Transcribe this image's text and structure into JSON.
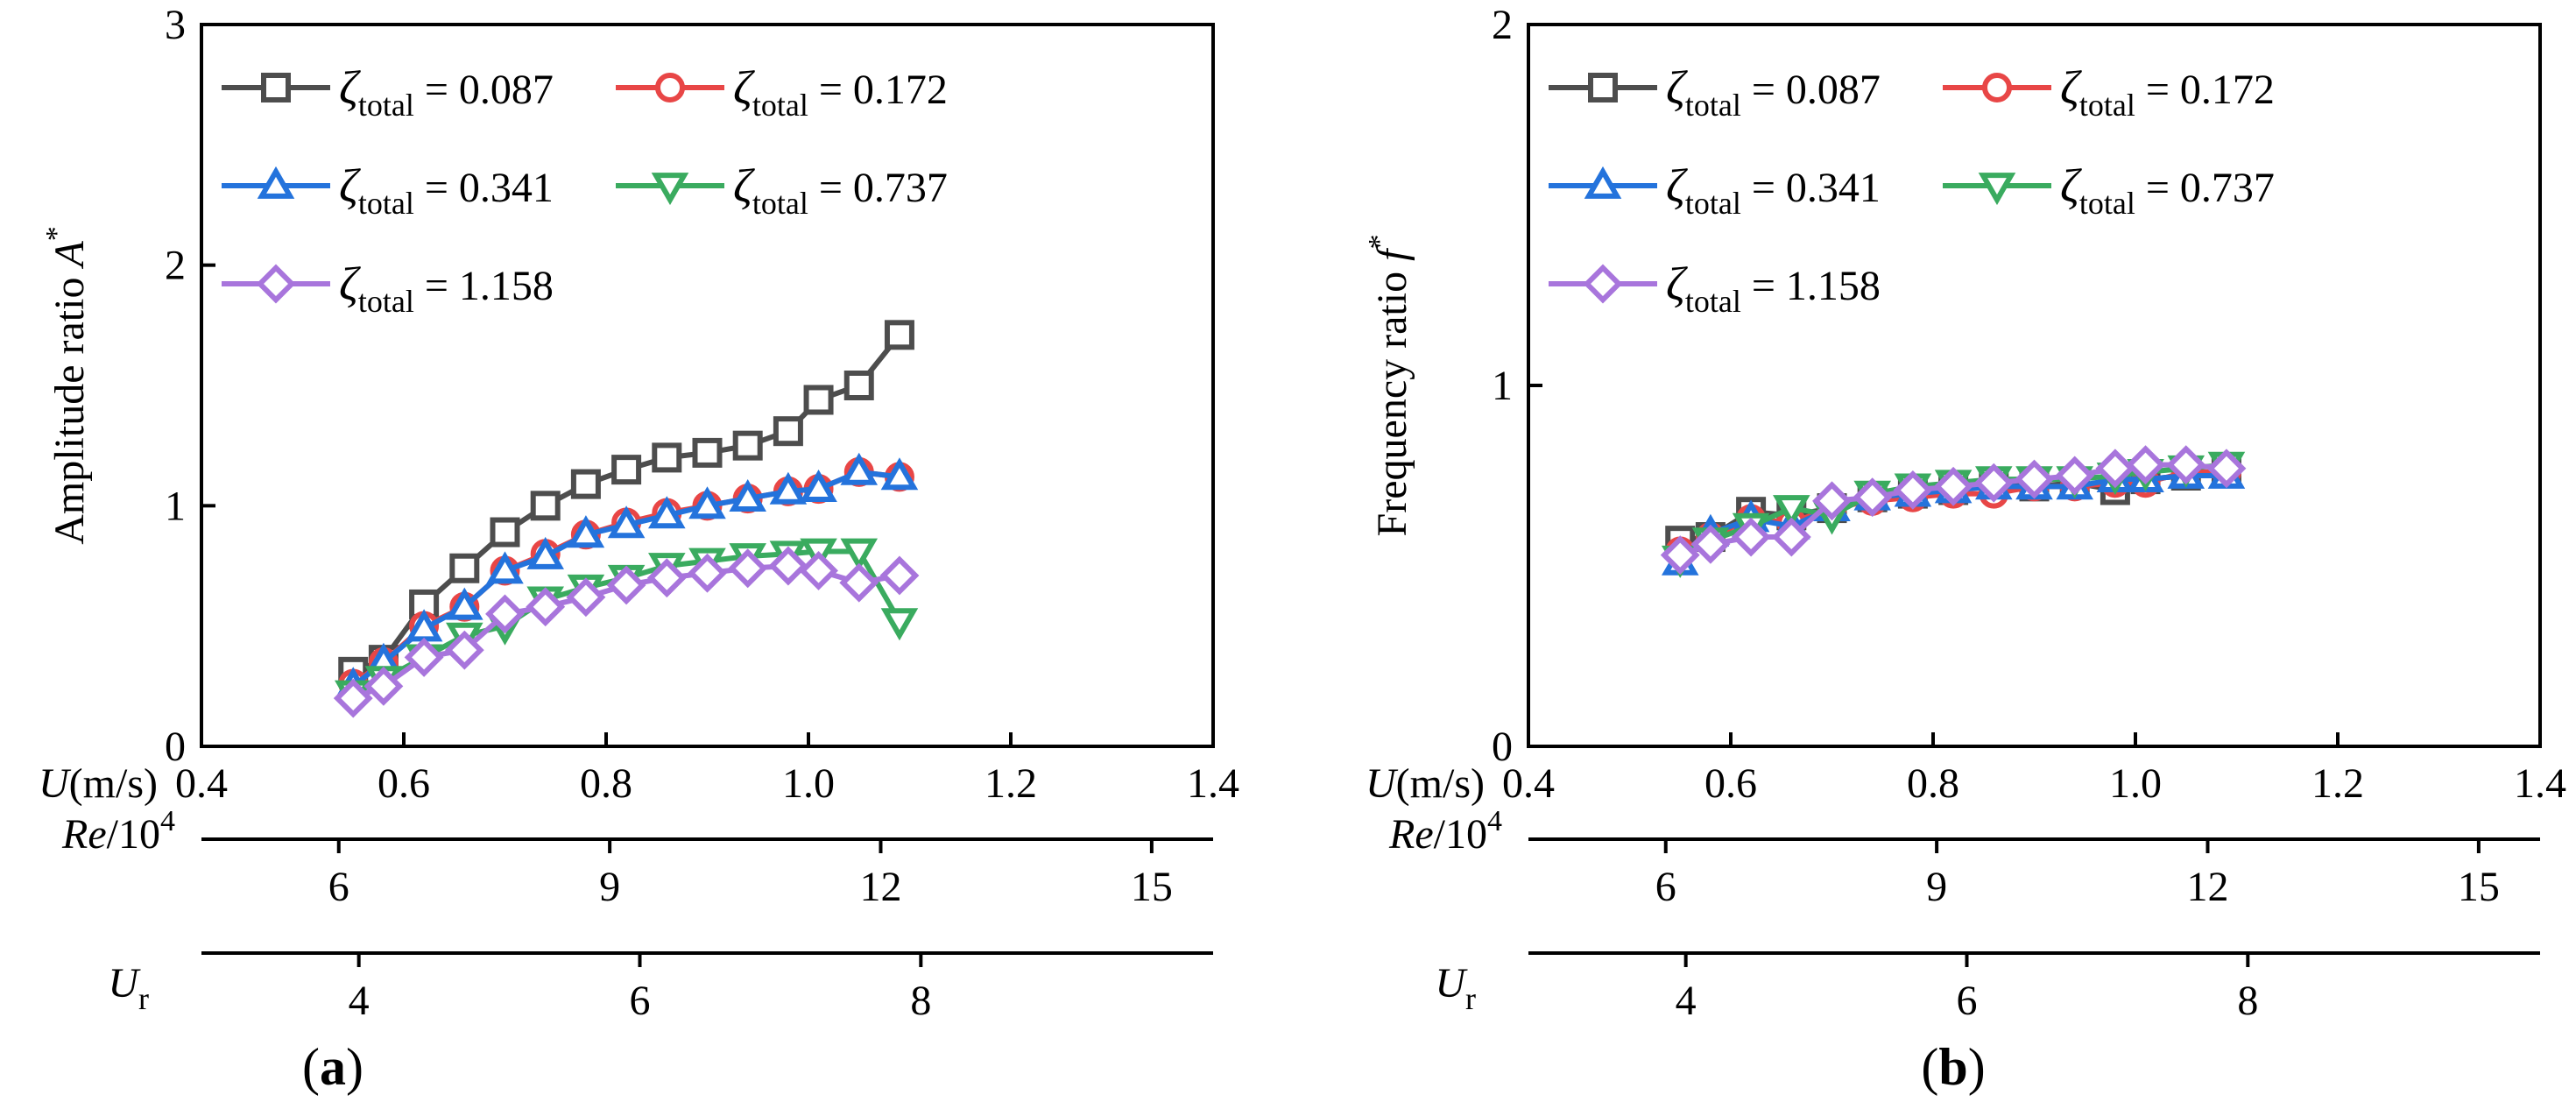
{
  "chart_data": [
    {
      "type": "line",
      "panel_label": "(a)",
      "ylabel_main": "Amplitude ratio ",
      "ylabel_var": "A",
      "ylabel_sup": "*",
      "ylim": [
        0,
        3
      ],
      "yticks": [
        "0",
        "1",
        "2",
        "3"
      ],
      "xlim": [
        0.4,
        1.4
      ],
      "x_axes": [
        {
          "label_main": "U",
          "label_rest": "(m/s)",
          "ticks": [
            0.4,
            0.6,
            0.8,
            1.0,
            1.2,
            1.4
          ],
          "tick_labels": [
            "0.4",
            "0.6",
            "0.8",
            "1.0",
            "1.2",
            "1.4"
          ]
        },
        {
          "label_main": "Re",
          "label_rest": "/10",
          "label_sup": "4",
          "ticks": [
            6,
            9,
            12,
            15
          ],
          "tick_labels": [
            "6",
            "9",
            "12",
            "15"
          ]
        },
        {
          "label_main": "U",
          "label_sub": "r",
          "ticks": [
            4,
            6,
            8
          ],
          "tick_labels": [
            "4",
            "6",
            "8"
          ]
        }
      ],
      "x": [
        0.55,
        0.58,
        0.62,
        0.66,
        0.7,
        0.74,
        0.78,
        0.82,
        0.86,
        0.9,
        0.94,
        0.98,
        1.01,
        1.05,
        1.09
      ],
      "series": [
        {
          "name": "0.087",
          "color": "#4d4d4d",
          "marker": "square",
          "values": [
            0.31,
            0.36,
            0.59,
            0.74,
            0.89,
            1.0,
            1.09,
            1.15,
            1.2,
            1.22,
            1.25,
            1.31,
            1.44,
            1.5,
            1.71
          ]
        },
        {
          "name": "0.172",
          "color": "#e84646",
          "marker": "circle",
          "values": [
            0.26,
            0.35,
            0.5,
            0.58,
            0.73,
            0.8,
            0.88,
            0.93,
            0.97,
            1.0,
            1.03,
            1.06,
            1.07,
            1.14,
            1.12
          ]
        },
        {
          "name": "0.341",
          "color": "#2473dc",
          "marker": "triangle-up",
          "values": [
            0.25,
            0.35,
            0.49,
            0.58,
            0.73,
            0.79,
            0.88,
            0.92,
            0.96,
            1.0,
            1.03,
            1.06,
            1.07,
            1.14,
            1.12
          ]
        },
        {
          "name": "0.737",
          "color": "#3aab5f",
          "marker": "triangle-down",
          "values": [
            0.22,
            0.28,
            0.37,
            0.46,
            0.5,
            0.61,
            0.66,
            0.7,
            0.75,
            0.77,
            0.79,
            0.8,
            0.81,
            0.81,
            0.52
          ]
        },
        {
          "name": "1.158",
          "color": "#a875dc",
          "marker": "diamond",
          "values": [
            0.2,
            0.25,
            0.37,
            0.4,
            0.55,
            0.58,
            0.62,
            0.67,
            0.7,
            0.72,
            0.74,
            0.75,
            0.73,
            0.68,
            0.71
          ]
        }
      ]
    },
    {
      "type": "line",
      "panel_label": "(b)",
      "ylabel_main": "Frequency ratio ",
      "ylabel_var": "f",
      "ylabel_sup": "*",
      "ylim": [
        0,
        2
      ],
      "yticks": [
        "0",
        "1",
        "2"
      ],
      "xlim": [
        0.4,
        1.4
      ],
      "x_axes": [
        {
          "label_main": "U",
          "label_rest": "(m/s)",
          "ticks": [
            0.4,
            0.6,
            0.8,
            1.0,
            1.2,
            1.4
          ],
          "tick_labels": [
            "0.4",
            "0.6",
            "0.8",
            "1.0",
            "1.2",
            "1.4"
          ]
        },
        {
          "label_main": "Re",
          "label_rest": "/10",
          "label_sup": "4",
          "ticks": [
            6,
            9,
            12,
            15
          ],
          "tick_labels": [
            "6",
            "9",
            "12",
            "15"
          ]
        },
        {
          "label_main": "U",
          "label_sub": "r",
          "ticks": [
            4,
            6,
            8
          ],
          "tick_labels": [
            "4",
            "6",
            "8"
          ]
        }
      ],
      "x": [
        0.55,
        0.58,
        0.62,
        0.66,
        0.7,
        0.74,
        0.78,
        0.82,
        0.86,
        0.9,
        0.94,
        0.98,
        1.01,
        1.05,
        1.09
      ],
      "series": [
        {
          "name": "0.087",
          "color": "#4d4d4d",
          "marker": "square",
          "values": [
            0.57,
            0.58,
            0.65,
            0.64,
            0.66,
            0.69,
            0.7,
            0.71,
            0.73,
            0.72,
            0.73,
            0.71,
            0.74,
            0.75,
            0.76
          ]
        },
        {
          "name": "0.172",
          "color": "#e84646",
          "marker": "circle",
          "values": [
            0.54,
            0.58,
            0.63,
            0.62,
            0.66,
            0.68,
            0.69,
            0.7,
            0.7,
            0.72,
            0.72,
            0.73,
            0.73,
            0.76,
            0.76
          ]
        },
        {
          "name": "0.341",
          "color": "#2473dc",
          "marker": "triangle-up",
          "values": [
            0.51,
            0.59,
            0.63,
            0.61,
            0.66,
            0.69,
            0.7,
            0.71,
            0.72,
            0.72,
            0.72,
            0.74,
            0.74,
            0.75,
            0.75
          ]
        },
        {
          "name": "0.737",
          "color": "#3aab5f",
          "marker": "triangle-down",
          "values": [
            0.52,
            0.57,
            0.61,
            0.66,
            0.64,
            0.7,
            0.72,
            0.73,
            0.74,
            0.74,
            0.74,
            0.75,
            0.76,
            0.77,
            0.78
          ]
        },
        {
          "name": "1.158",
          "color": "#a875dc",
          "marker": "diamond",
          "values": [
            0.53,
            0.56,
            0.58,
            0.58,
            0.68,
            0.69,
            0.71,
            0.72,
            0.73,
            0.74,
            0.75,
            0.77,
            0.78,
            0.78,
            0.77
          ]
        }
      ]
    }
  ],
  "legend": {
    "symbol": "ζ",
    "subscript": "total",
    "equals": " = "
  },
  "secondary_axis_map": {
    "re_per_u": 11.2,
    "ur_per_u": 7.2
  }
}
